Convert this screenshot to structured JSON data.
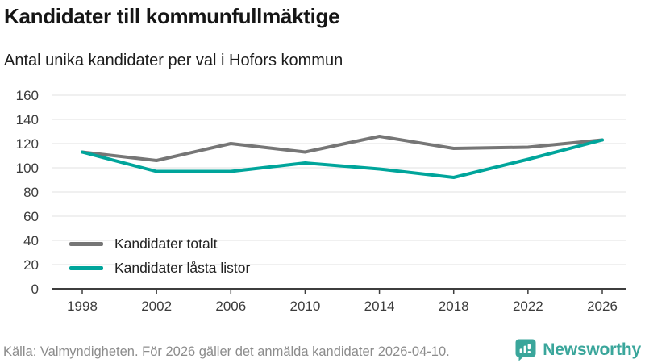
{
  "header": {
    "title": "Kandidater till kommunfullmäktige",
    "subtitle": "Antal unika kandidater per val i Hofors kommun"
  },
  "chart_data": {
    "type": "line",
    "title": "Kandidater till kommunfullmäktige",
    "subtitle": "Antal unika kandidater per val i Hofors kommun",
    "x": [
      1998,
      2002,
      2006,
      2010,
      2014,
      2018,
      2022,
      2026
    ],
    "series": [
      {
        "name": "Kandidater totalt",
        "color": "#767676",
        "values": [
          113,
          106,
          120,
          113,
          126,
          116,
          117,
          123
        ]
      },
      {
        "name": "Kandidater låsta listor",
        "color": "#00a59b",
        "values": [
          113,
          97,
          97,
          104,
          99,
          92,
          107,
          123
        ]
      }
    ],
    "xlabel": "",
    "ylabel": "",
    "ylim": [
      0,
      160
    ],
    "ytick_step": 20,
    "grid": true,
    "gridline_color": "#e2e2e2",
    "axis_color": "#3d3d3d",
    "legend_position": "inside-bottom-left"
  },
  "footer": {
    "source": "Källa: Valmyndigheten. För 2026 gäller det anmälda kandidater 2026-04-10.",
    "logo_text": "Newsworthy",
    "logo_icon": "bar-chart-speech-bubble-icon",
    "logo_color": "#3aa69b"
  }
}
